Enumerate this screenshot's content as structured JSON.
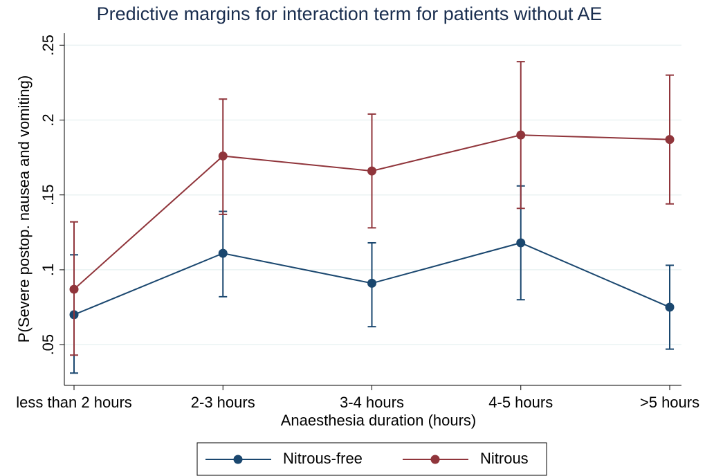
{
  "chart_data": {
    "type": "line",
    "title": "Predictive margins for interaction term for patients without AE",
    "x_label": "Anaesthesia duration (hours)",
    "y_label": "P(Severe postop. nausea and vomiting)",
    "categories": [
      "less than 2 hours",
      "2-3 hours",
      "3-4 hours",
      "4-5 hours",
      ">5 hours"
    ],
    "ylim": [
      0.0228,
      0.258
    ],
    "yticks": [
      {
        "value": 0.05,
        "label": ".05"
      },
      {
        "value": 0.1,
        "label": ".1"
      },
      {
        "value": 0.15,
        "label": ".15"
      },
      {
        "value": 0.2,
        "label": ".2"
      },
      {
        "value": 0.25,
        "label": ".25"
      }
    ],
    "grid": true,
    "legend": "bottom",
    "series": [
      {
        "name": "Nitrous-free",
        "color": "#1a476f",
        "values": [
          0.07,
          0.111,
          0.091,
          0.118,
          0.075
        ],
        "lower": [
          0.031,
          0.082,
          0.062,
          0.08,
          0.047
        ],
        "upper": [
          0.11,
          0.139,
          0.118,
          0.156,
          0.103
        ]
      },
      {
        "name": "Nitrous",
        "color": "#90353b",
        "values": [
          0.087,
          0.176,
          0.166,
          0.19,
          0.187
        ],
        "lower": [
          0.043,
          0.137,
          0.128,
          0.141,
          0.144
        ],
        "upper": [
          0.132,
          0.214,
          0.204,
          0.239,
          0.23
        ]
      }
    ]
  }
}
